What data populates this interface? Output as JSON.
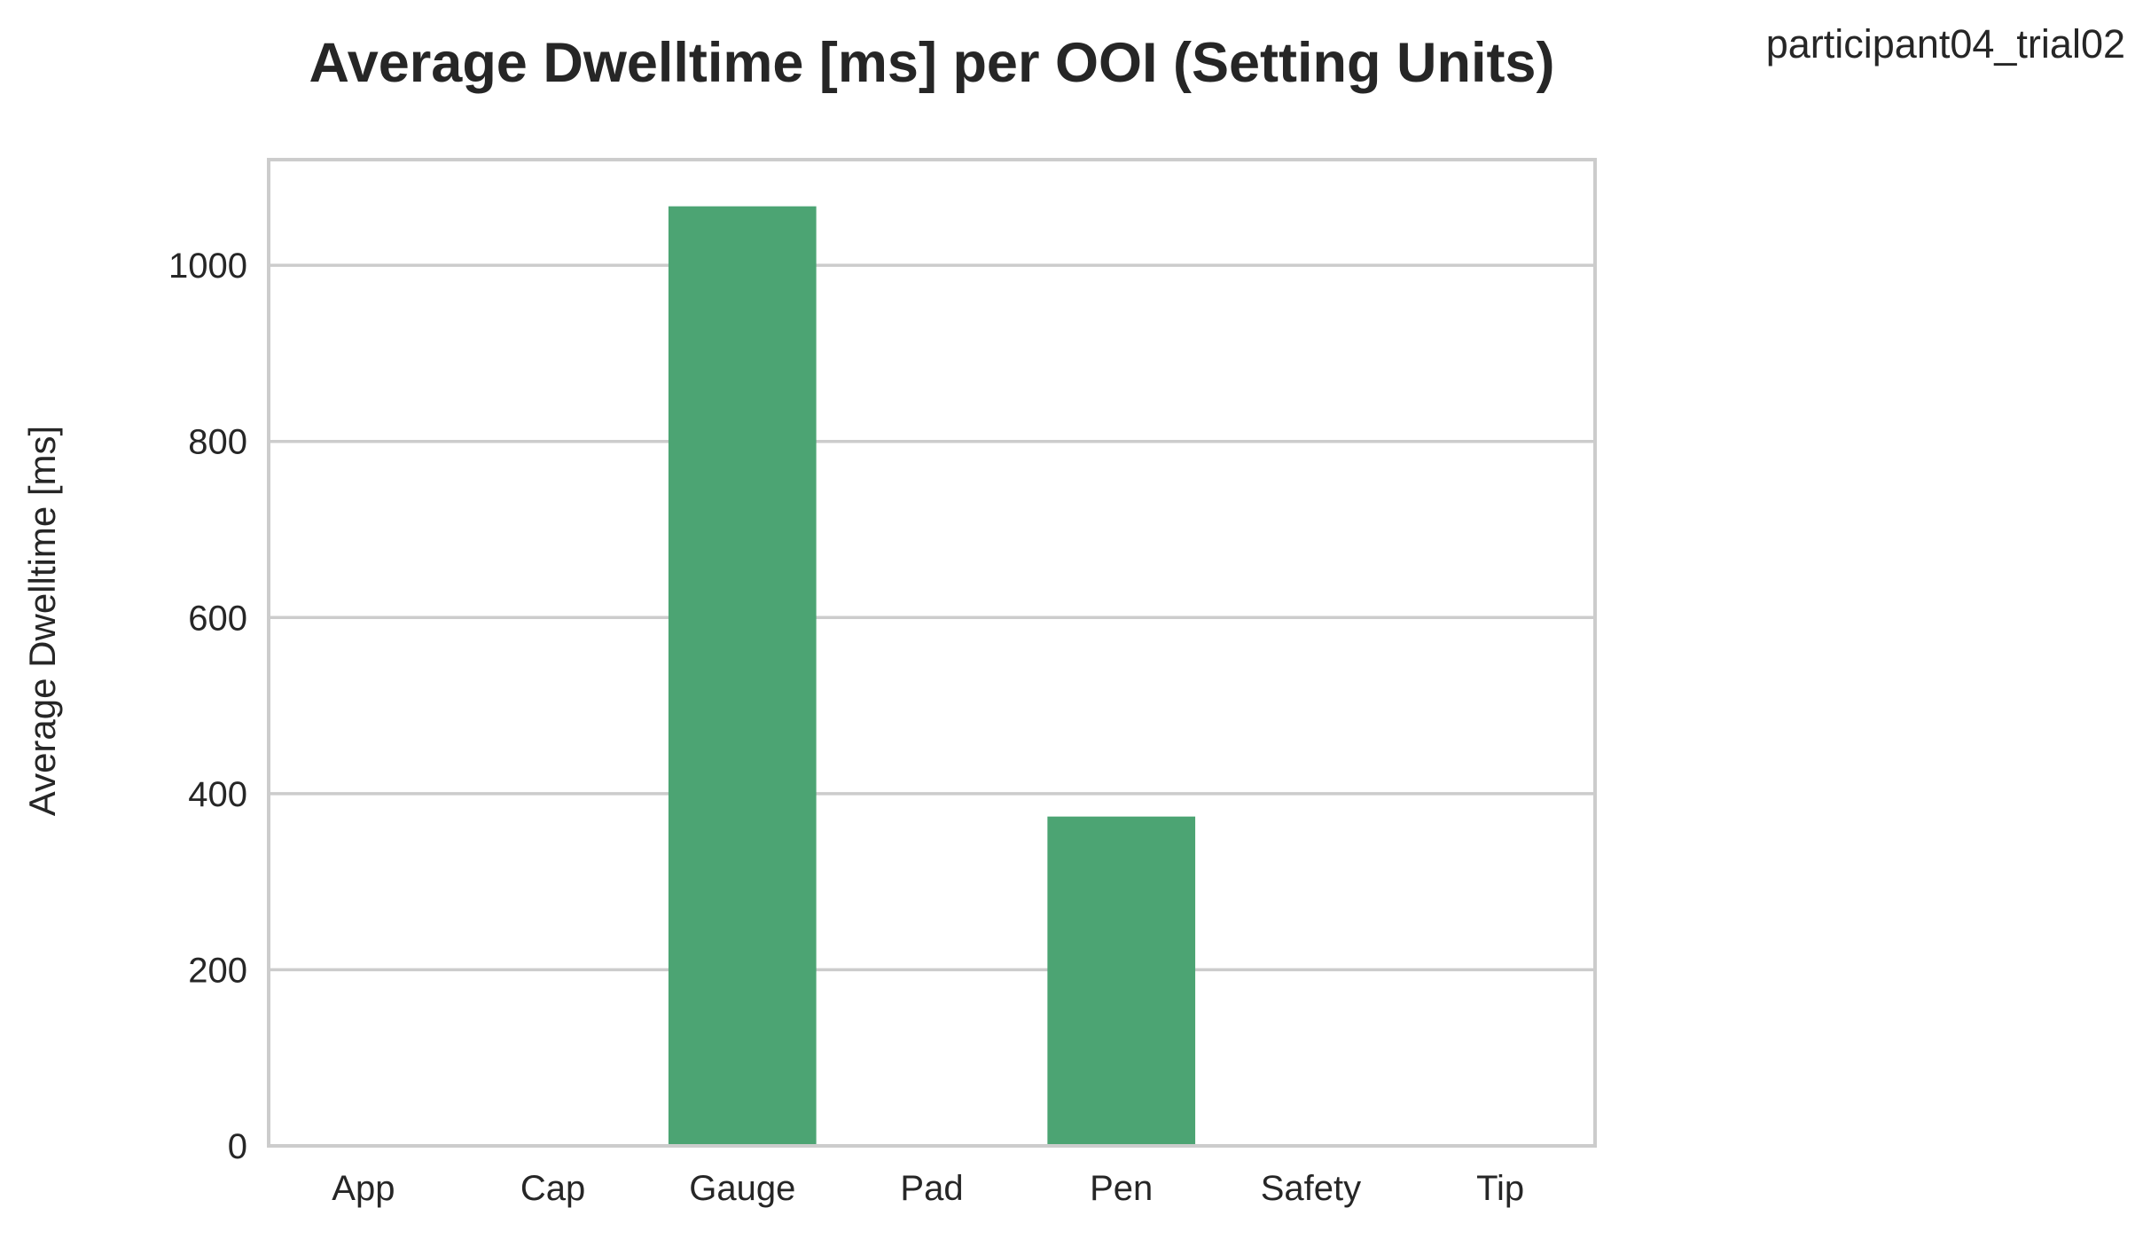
{
  "chart_data": {
    "type": "bar",
    "title": "Average Dwelltime [ms] per OOI (Setting Units)",
    "side_label": "participant04_trial02",
    "xlabel": "",
    "ylabel": "Average Dwelltime [ms]",
    "categories": [
      "App",
      "Cap",
      "Gauge",
      "Pad",
      "Pen",
      "Safety",
      "Tip"
    ],
    "values": [
      0,
      0,
      1067,
      0,
      374,
      0,
      0
    ],
    "ylim": [
      0,
      1120
    ],
    "yticks": [
      0,
      200,
      400,
      600,
      800,
      1000
    ],
    "grid": true,
    "colors": {
      "bar": "#4ca473",
      "grid": "#cccccc",
      "frame": "#cccccc",
      "text": "#262626"
    }
  }
}
